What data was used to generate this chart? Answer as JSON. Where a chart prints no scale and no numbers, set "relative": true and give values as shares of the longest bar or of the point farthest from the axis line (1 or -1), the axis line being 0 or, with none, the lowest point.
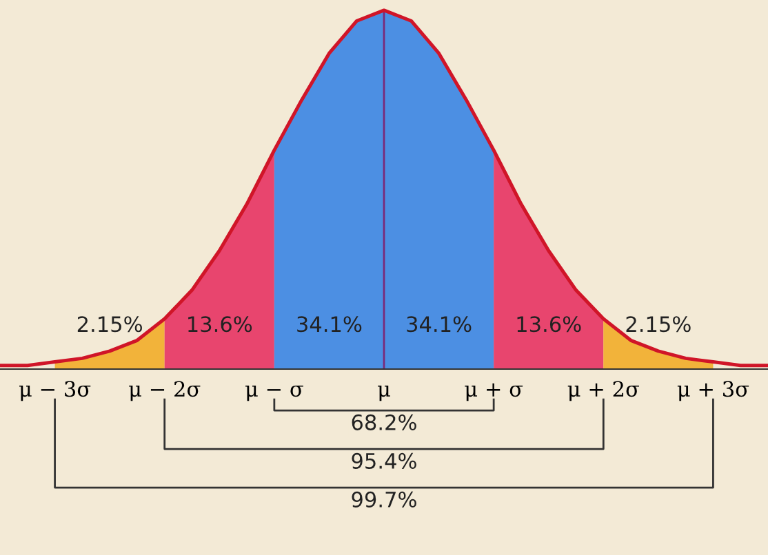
{
  "chart_data": {
    "type": "line",
    "relative": true,
    "x": [
      -3.5,
      -3.25,
      -3,
      -2.75,
      -2.5,
      -2.25,
      -2,
      -1.75,
      -1.5,
      -1.25,
      -1,
      -0.75,
      -0.5,
      -0.25,
      0,
      0.25,
      0.5,
      0.75,
      1,
      1.25,
      1.5,
      1.75,
      2,
      2.25,
      2.5,
      2.75,
      3,
      3.25,
      3.5
    ],
    "series": [
      {
        "color": "#d01528",
        "values": [
          0.01,
          0.01,
          0.02,
          0.03,
          0.05,
          0.08,
          0.14,
          0.22,
          0.33,
          0.46,
          0.61,
          0.75,
          0.88,
          0.97,
          1,
          0.97,
          0.88,
          0.75,
          0.61,
          0.46,
          0.33,
          0.22,
          0.14,
          0.08,
          0.05,
          0.03,
          0.02,
          0.01,
          0.01
        ]
      }
    ],
    "xlim": [
      -3.5,
      3.5
    ],
    "xticks": [
      {
        "value": -3,
        "label": "μ − 3σ"
      },
      {
        "value": -2,
        "label": "μ − 2σ"
      },
      {
        "value": -1,
        "label": "μ − σ"
      },
      {
        "value": 0,
        "label": "μ"
      },
      {
        "value": 1,
        "label": "μ + σ"
      },
      {
        "value": 2,
        "label": "μ + 2σ"
      },
      {
        "value": 3,
        "label": "μ + 3σ"
      }
    ],
    "bands": [
      {
        "axis": "x",
        "from": -3,
        "to": -2,
        "label": "2.15%",
        "color": "#f2b33a"
      },
      {
        "axis": "x",
        "from": -2,
        "to": -1,
        "label": "13.6%",
        "color": "#e8456e"
      },
      {
        "axis": "x",
        "from": -1,
        "to": 0,
        "label": "34.1%",
        "color": "#4c8fe3"
      },
      {
        "axis": "x",
        "from": 0,
        "to": 1,
        "label": "34.1%",
        "color": "#4c8fe3"
      },
      {
        "axis": "x",
        "from": 1,
        "to": 2,
        "label": "13.6%",
        "color": "#e8456e"
      },
      {
        "axis": "x",
        "from": 2,
        "to": 3,
        "label": "2.15%",
        "color": "#f2b33a"
      }
    ],
    "ref_lines": [
      {
        "axis": "x",
        "value": 0,
        "color": "#7a2a7a"
      }
    ],
    "annotations": [
      "68.2%",
      "95.4%",
      "99.7%"
    ],
    "grid": false,
    "legend": false
  }
}
